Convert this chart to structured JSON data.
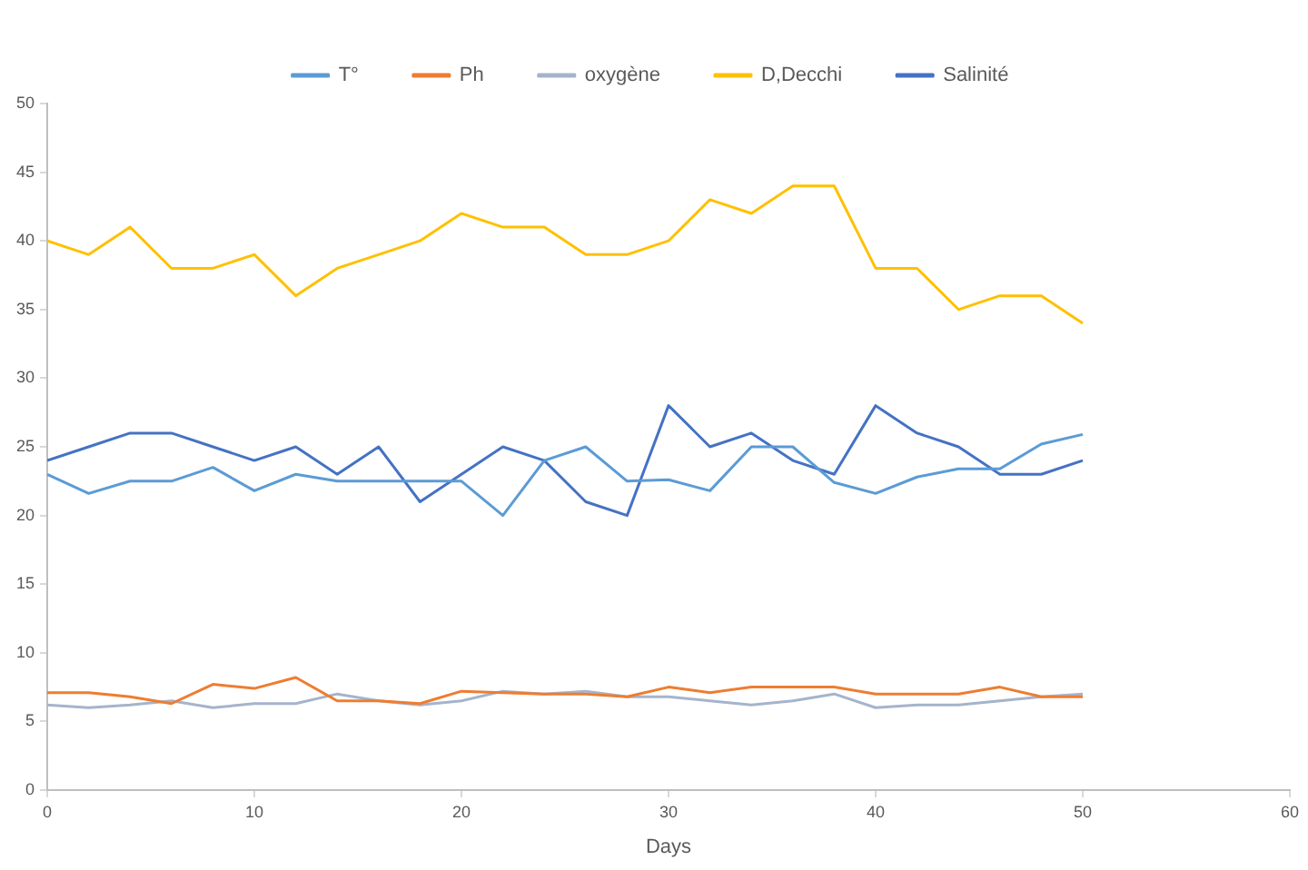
{
  "chart_data": {
    "type": "line",
    "xlabel": "Days",
    "x": [
      0,
      2,
      4,
      6,
      8,
      10,
      12,
      14,
      16,
      18,
      20,
      22,
      24,
      26,
      28,
      30,
      32,
      34,
      36,
      38,
      40,
      42,
      44,
      46,
      48,
      50
    ],
    "series": [
      {
        "name": "T°",
        "color": "#5b9bd5",
        "values": [
          23,
          21.6,
          22.5,
          22.5,
          23.5,
          21.8,
          23,
          22.5,
          22.5,
          22.5,
          22.5,
          20,
          24,
          25,
          22.5,
          22.6,
          21.8,
          25,
          25,
          22.4,
          21.6,
          22.8,
          23.4,
          23.4,
          25.2,
          25.9
        ]
      },
      {
        "name": "Ph",
        "color": "#ed7d31",
        "values": [
          7.1,
          7.1,
          6.8,
          6.3,
          7.7,
          7.4,
          8.2,
          6.5,
          6.5,
          6.3,
          7.2,
          7.1,
          7,
          7,
          6.8,
          7.5,
          7.1,
          7.5,
          7.5,
          7.5,
          7,
          7,
          7,
          7.5,
          6.8,
          6.8
        ]
      },
      {
        "name": "oxygène",
        "color": "#a5b4cc",
        "values": [
          6.2,
          6,
          6.2,
          6.5,
          6,
          6.3,
          6.3,
          7,
          6.5,
          6.2,
          6.5,
          7.2,
          7,
          7.2,
          6.8,
          6.8,
          6.5,
          6.2,
          6.5,
          7,
          6,
          6.2,
          6.2,
          6.5,
          6.8,
          7
        ]
      },
      {
        "name": "D,Decchi",
        "color": "#ffc000",
        "values": [
          40,
          39,
          41,
          38,
          38,
          39,
          36,
          38,
          39,
          40,
          42,
          41,
          41,
          39,
          39,
          40,
          43,
          42,
          44,
          44,
          38,
          38,
          35,
          36,
          36,
          34
        ]
      },
      {
        "name": "Salinité",
        "color": "#4472c4",
        "values": [
          24,
          25,
          26,
          26,
          25,
          24,
          25,
          23,
          25,
          21,
          23,
          25,
          24,
          21,
          20,
          28,
          25,
          26,
          24,
          23,
          28,
          26,
          25,
          23,
          23,
          24
        ]
      }
    ],
    "xlim": [
      0,
      60
    ],
    "xticks": [
      0,
      10,
      20,
      30,
      40,
      50,
      60
    ],
    "ylim": [
      0,
      50
    ],
    "yticks": [
      0,
      5,
      10,
      15,
      20,
      25,
      30,
      35,
      40,
      45,
      50
    ],
    "grid": false,
    "legend": "top",
    "marker": "none",
    "line_style": "solid"
  }
}
